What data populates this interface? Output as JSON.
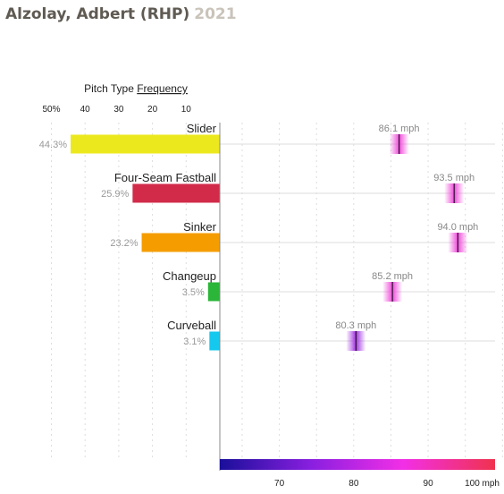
{
  "header": {
    "player": "Alzolay, Adbert (RHP)",
    "year": "2021"
  },
  "colors": {
    "title_player": "#5f5a52",
    "title_year": "#c9c3ba",
    "grid": "#dddddd",
    "axis": "#888888",
    "tick_label": "#222222",
    "pct_label": "#999999",
    "velo_label": "#888888",
    "velo_marker": "#ee44d8"
  },
  "chart_data": [
    {
      "type": "bar",
      "orientation": "horizontal",
      "title": "Pitch Type",
      "title_link": "Frequency",
      "categories": [
        "Slider",
        "Four-Seam Fastball",
        "Sinker",
        "Changeup",
        "Curveball"
      ],
      "values": [
        44.3,
        25.9,
        23.2,
        3.5,
        3.1
      ],
      "value_labels": [
        "44.3%",
        "25.9%",
        "23.2%",
        "3.5%",
        "3.1%"
      ],
      "bar_colors": [
        "#ece81e",
        "#d22b4a",
        "#f59c00",
        "#2bb539",
        "#14c8ee"
      ],
      "xlim": [
        0,
        50
      ],
      "x_direction": "reversed",
      "ticks": [
        50,
        40,
        30,
        20,
        10
      ],
      "tick_labels": [
        "50%",
        "40",
        "30",
        "20",
        "10"
      ],
      "grid": true
    },
    {
      "type": "scatter",
      "categories": [
        "Slider",
        "Four-Seam Fastball",
        "Sinker",
        "Changeup",
        "Curveball"
      ],
      "values": [
        86.1,
        93.5,
        94.0,
        85.2,
        80.3
      ],
      "value_labels": [
        "86.1 mph",
        "93.5 mph",
        "94.0 mph",
        "85.2 mph",
        "80.3 mph"
      ],
      "xlim": [
        62,
        99
      ],
      "ticks": [
        70,
        80,
        90,
        100
      ],
      "tick_labels": [
        "70",
        "80",
        "90",
        "100 mph"
      ],
      "colorbar": {
        "stops": [
          "#1a0f9a",
          "#8a1fe0",
          "#f22fe6",
          "#f0324e"
        ],
        "range": [
          62,
          99
        ]
      },
      "grid": true
    }
  ]
}
